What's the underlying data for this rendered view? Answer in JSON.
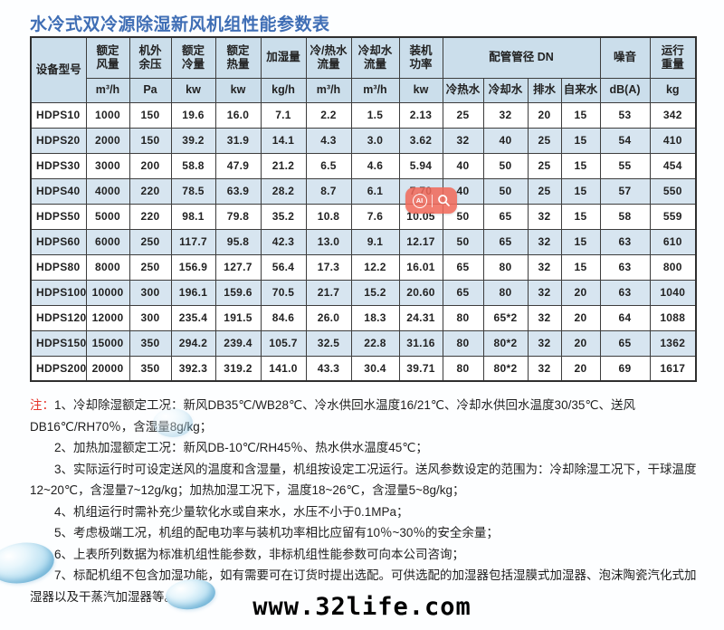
{
  "page": {
    "title": "水冷式双冷源除湿新风机组性能参数表",
    "watermark": "www.32life.com"
  },
  "overlay": {
    "ai_label": "AI"
  },
  "table": {
    "header": {
      "model": "设备型号",
      "cols": [
        {
          "label": "额定\n风量",
          "unit": "m³/h"
        },
        {
          "label": "机外\n余压",
          "unit": "Pa"
        },
        {
          "label": "额定\n冷量",
          "unit": "kw"
        },
        {
          "label": "额定\n热量",
          "unit": "kw"
        },
        {
          "label": "加湿量",
          "unit": "kg/h"
        },
        {
          "label": "冷/热水\n流量",
          "unit": "m³/h"
        },
        {
          "label": "冷却水\n流量",
          "unit": "m³/h"
        },
        {
          "label": "装机\n功率",
          "unit": "kw"
        }
      ],
      "pipe_group": "配管管径 DN",
      "pipe_cols": [
        "冷热水",
        "冷却水",
        "排水",
        "自来水"
      ],
      "noise": {
        "label": "噪音",
        "unit": "dB(A)"
      },
      "weight": {
        "label": "运行\n重量",
        "unit": "kg"
      }
    },
    "rows": [
      [
        "HDPS10",
        "1000",
        "150",
        "19.6",
        "16.0",
        "7.1",
        "2.2",
        "1.5",
        "2.13",
        "25",
        "32",
        "20",
        "15",
        "53",
        "342"
      ],
      [
        "HDPS20",
        "2000",
        "150",
        "39.2",
        "31.9",
        "14.1",
        "4.3",
        "3.0",
        "3.62",
        "32",
        "40",
        "25",
        "15",
        "54",
        "410"
      ],
      [
        "HDPS30",
        "3000",
        "200",
        "58.8",
        "47.9",
        "21.2",
        "6.5",
        "4.6",
        "5.94",
        "40",
        "50",
        "25",
        "15",
        "55",
        "454"
      ],
      [
        "HDPS40",
        "4000",
        "220",
        "78.5",
        "63.9",
        "28.2",
        "8.7",
        "6.1",
        "7.70",
        "40",
        "50",
        "25",
        "15",
        "57",
        "550"
      ],
      [
        "HDPS50",
        "5000",
        "220",
        "98.1",
        "79.8",
        "35.2",
        "10.8",
        "7.6",
        "10.05",
        "50",
        "65",
        "32",
        "15",
        "58",
        "559"
      ],
      [
        "HDPS60",
        "6000",
        "250",
        "117.7",
        "95.8",
        "42.3",
        "13.0",
        "9.1",
        "12.17",
        "50",
        "65",
        "32",
        "15",
        "63",
        "610"
      ],
      [
        "HDPS80",
        "8000",
        "250",
        "156.9",
        "127.7",
        "56.4",
        "17.3",
        "12.2",
        "16.01",
        "65",
        "80",
        "32",
        "15",
        "63",
        "800"
      ],
      [
        "HDPS100",
        "10000",
        "300",
        "196.1",
        "159.6",
        "70.5",
        "21.7",
        "15.2",
        "20.60",
        "65",
        "80",
        "32",
        "20",
        "63",
        "1040"
      ],
      [
        "HDPS120",
        "12000",
        "300",
        "235.4",
        "191.5",
        "84.6",
        "26.0",
        "18.3",
        "24.31",
        "80",
        "65*2",
        "32",
        "20",
        "64",
        "1088"
      ],
      [
        "HDPS150",
        "15000",
        "350",
        "294.2",
        "239.4",
        "105.7",
        "32.5",
        "22.8",
        "31.16",
        "80",
        "80*2",
        "32",
        "20",
        "65",
        "1362"
      ],
      [
        "HDPS200",
        "20000",
        "350",
        "392.3",
        "319.2",
        "141.0",
        "43.3",
        "30.4",
        "39.71",
        "80",
        "80*2",
        "32",
        "20",
        "69",
        "1617"
      ]
    ]
  },
  "notes": {
    "prefix": "注：",
    "items": [
      "1、冷却除湿额定工况：新风DB35℃/WB28℃、冷水供回水温度16/21℃、冷却水供回水温度30/35℃、送风DB16℃/RH70％，含湿量8g/kg；",
      "2、加热加湿额定工况：新风DB-10℃/RH45％、热水供水温度45℃；",
      "3、实际运行时可设定送风的温度和含湿量，机组按设定工况运行。送风参数设定的范围为：冷却除湿工况下，干球温度12~20℃，含湿量7~12g/kg；加热加湿工况下，温度18~26℃，含湿量5~8g/kg；",
      "4、机组运行时需补充少量软化水或自来水，水压不小于0.1MPa；",
      "5、考虑极端工况，机组的配电功率与装机功率相比应留有10％~30％的安全余量；",
      "6、上表所列数据为标准机组性能参数，非标机组性能参数可向本公司咨询；",
      "7、标配机组不包含加湿功能，如有需要可在订货时提出选配。可供选配的加湿器包括湿膜式加湿器、泡沫陶瓷汽化式加湿器以及干蒸汽加湿器等。"
    ]
  }
}
